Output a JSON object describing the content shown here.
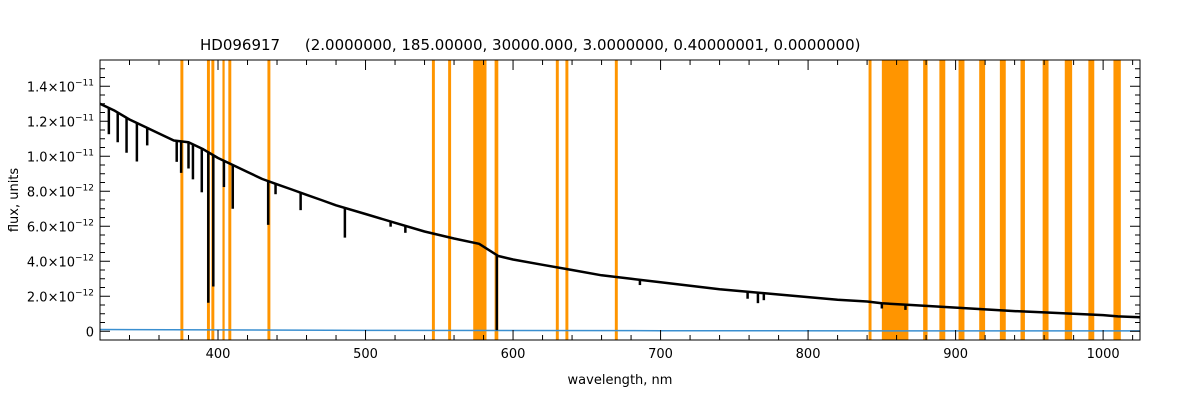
{
  "chart_data": {
    "type": "line",
    "title": "HD096917",
    "title_params": "(2.0000000, 185.00000, 30000.000, 3.0000000, 0.40000001, 0.0000000)",
    "xlabel": "wavelength, nm",
    "ylabel": "flux, units",
    "xlim": [
      320,
      1025
    ],
    "ylim": [
      -5e-13,
      1.55e-11
    ],
    "x_ticks": [
      {
        "value": 400,
        "label": "400"
      },
      {
        "value": 500,
        "label": "500"
      },
      {
        "value": 600,
        "label": "600"
      },
      {
        "value": 700,
        "label": "700"
      },
      {
        "value": 800,
        "label": "800"
      },
      {
        "value": 900,
        "label": "900"
      },
      {
        "value": 1000,
        "label": "1000"
      }
    ],
    "y_ticks": [
      {
        "value": 0,
        "label": "0"
      },
      {
        "value": 2e-12,
        "mantissa": "2.0",
        "exponent": "−12"
      },
      {
        "value": 4e-12,
        "mantissa": "4.0",
        "exponent": "−12"
      },
      {
        "value": 6e-12,
        "mantissa": "6.0",
        "exponent": "−12"
      },
      {
        "value": 8e-12,
        "mantissa": "8.0",
        "exponent": "−12"
      },
      {
        "value": 1e-11,
        "mantissa": "1.0",
        "exponent": "−11"
      },
      {
        "value": 1.2e-11,
        "mantissa": "1.2",
        "exponent": "−11"
      },
      {
        "value": 1.4e-11,
        "mantissa": "1.4",
        "exponent": "−11"
      }
    ],
    "series": [
      {
        "color": "#000000",
        "x": [
          320,
          330,
          340,
          350,
          360,
          370,
          380,
          390,
          400,
          410,
          420,
          430,
          440,
          450,
          460,
          470,
          480,
          500,
          520,
          540,
          560,
          577,
          590,
          600,
          620,
          640,
          660,
          680,
          700,
          720,
          740,
          760,
          780,
          800,
          820,
          840,
          850,
          870,
          880,
          900,
          920,
          940,
          960,
          980,
          1000,
          1010,
          1025
        ],
        "y": [
          1.3e-11,
          1.26e-11,
          1.21e-11,
          1.17e-11,
          1.13e-11,
          1.09e-11,
          1.08e-11,
          1.04e-11,
          9.9e-12,
          9.5e-12,
          9.1e-12,
          8.7e-12,
          8.4e-12,
          8.1e-12,
          7.8e-12,
          7.5e-12,
          7.2e-12,
          6.7e-12,
          6.2e-12,
          5.7e-12,
          5.3e-12,
          5e-12,
          4.3e-12,
          4.1e-12,
          3.8e-12,
          3.5e-12,
          3.2e-12,
          3e-12,
          2.8e-12,
          2.6e-12,
          2.4e-12,
          2.25e-12,
          2.1e-12,
          1.95e-12,
          1.8e-12,
          1.7e-12,
          1.6e-12,
          1.5e-12,
          1.45e-12,
          1.35e-12,
          1.25e-12,
          1.15e-12,
          1.08e-12,
          1e-12,
          9.2e-13,
          8.5e-13,
          8e-13
        ]
      },
      {
        "color": "#3a8fd0",
        "x": [
          320,
          500,
          700,
          900,
          1025
        ],
        "y": [
          1e-13,
          5e-14,
          3e-14,
          2e-14,
          2e-14
        ]
      }
    ],
    "absorption_lines": [
      {
        "x": 326,
        "depth": 1.5e-12
      },
      {
        "x": 332,
        "depth": 1.7e-12
      },
      {
        "x": 338,
        "depth": 2e-12
      },
      {
        "x": 345,
        "depth": 2.2e-12
      },
      {
        "x": 352,
        "depth": 1e-12
      },
      {
        "x": 372,
        "depth": 1.2e-12
      },
      {
        "x": 375,
        "depth": 1.8e-12
      },
      {
        "x": 380,
        "depth": 1.5e-12
      },
      {
        "x": 383,
        "depth": 2e-12
      },
      {
        "x": 389,
        "depth": 2.5e-12
      },
      {
        "x": 393.4,
        "depth": 8.6e-12
      },
      {
        "x": 396.8,
        "depth": 7.5e-12
      },
      {
        "x": 404,
        "depth": 1.5e-12
      },
      {
        "x": 410,
        "depth": 2.5e-12
      },
      {
        "x": 434,
        "depth": 2.5e-12
      },
      {
        "x": 439,
        "depth": 6e-13
      },
      {
        "x": 456,
        "depth": 1e-12
      },
      {
        "x": 486,
        "depth": 1.7e-12
      },
      {
        "x": 517,
        "depth": 3e-13
      },
      {
        "x": 527,
        "depth": 4e-13
      },
      {
        "x": 589,
        "depth": 4.3e-12
      },
      {
        "x": 686,
        "depth": 3e-13
      },
      {
        "x": 759,
        "depth": 4e-13
      },
      {
        "x": 766,
        "depth": 6e-13
      },
      {
        "x": 770,
        "depth": 4e-13
      },
      {
        "x": 850,
        "depth": 3e-13
      },
      {
        "x": 866,
        "depth": 3e-13
      }
    ],
    "masked_bands": [
      [
        374.5,
        376.5
      ],
      [
        392.5,
        394.5
      ],
      [
        395.5,
        397.5
      ],
      [
        403,
        404.5
      ],
      [
        407,
        409
      ],
      [
        433.5,
        435.5
      ],
      [
        545,
        547
      ],
      [
        556,
        558
      ],
      [
        573,
        582
      ],
      [
        587.5,
        590
      ],
      [
        629,
        631
      ],
      [
        635.5,
        637.5
      ],
      [
        669,
        671
      ],
      [
        841,
        843
      ],
      [
        850,
        868
      ],
      [
        878,
        881
      ],
      [
        889,
        893
      ],
      [
        902,
        906
      ],
      [
        916,
        920
      ],
      [
        930,
        934
      ],
      [
        944,
        947
      ],
      [
        959,
        963
      ],
      [
        974,
        979
      ],
      [
        990,
        994
      ],
      [
        1007,
        1012
      ]
    ],
    "masked_band_color": "#ff9500",
    "grid": false,
    "legend": "none"
  }
}
